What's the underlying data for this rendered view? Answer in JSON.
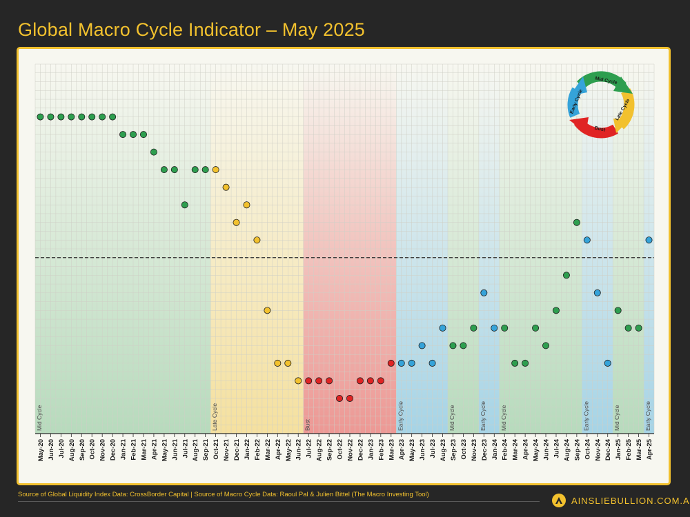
{
  "title": "Global Macro Cycle Indicator – May 2025",
  "footer": {
    "source": "Source of Global Liquidity Index Data: CrossBorder Capital | Source of Macro Cycle Data: Raoul Pal & Julien Bittel (The Macro Investing Tool)",
    "brand": "AINSLIEBULLION.COM.AU"
  },
  "colors": {
    "early": "#35a3d9",
    "mid": "#2e9e4f",
    "late": "#f2c12e",
    "bust": "#e02424",
    "brand": "#f2c12e"
  },
  "cycle_wheel": {
    "labels": [
      "Mid Cycle",
      "Late Cycle",
      "Bust",
      "Early Cycle"
    ]
  },
  "chart_data": {
    "type": "scatter",
    "x": [
      "May-20",
      "Jun-20",
      "Jul-20",
      "Aug-20",
      "Sep-20",
      "Oct-20",
      "Nov-20",
      "Dec-20",
      "Jan-21",
      "Feb-21",
      "Mar-21",
      "Apr-21",
      "May-21",
      "Jun-21",
      "Jul-21",
      "Aug-21",
      "Sep-21",
      "Oct-21",
      "Nov-21",
      "Dec-21",
      "Jan-22",
      "Feb-22",
      "Mar-22",
      "Apr-22",
      "May-22",
      "Jun-22",
      "Jul-22",
      "Aug-22",
      "Sep-22",
      "Oct-22",
      "Nov-22",
      "Dec-22",
      "Jan-23",
      "Feb-23",
      "Mar-23",
      "Apr-23",
      "May-23",
      "Jun-23",
      "Jul-23",
      "Aug-23",
      "Sep-23",
      "Oct-23",
      "Nov-23",
      "Dec-23",
      "Jan-24",
      "Feb-24",
      "Mar-24",
      "Apr-24",
      "May-24",
      "Jun-24",
      "Jul-24",
      "Aug-24",
      "Sep-24",
      "Oct-24",
      "Nov-24",
      "Dec-24",
      "Jan-25",
      "Feb-25",
      "Mar-25",
      "Apr-25"
    ],
    "y": [
      17,
      17,
      17,
      17,
      17,
      17,
      17,
      17,
      16,
      16,
      16,
      15,
      14,
      14,
      12,
      14,
      14,
      14,
      13,
      11,
      12,
      10,
      6,
      3,
      3,
      2,
      2,
      2,
      2,
      1,
      1,
      2,
      2,
      2,
      3,
      3,
      3,
      4,
      3,
      5,
      4,
      4,
      5,
      7,
      5,
      5,
      3,
      3,
      5,
      4,
      6,
      8,
      11,
      10,
      7,
      3,
      6,
      5,
      5,
      10
    ],
    "phase": [
      "mid",
      "mid",
      "mid",
      "mid",
      "mid",
      "mid",
      "mid",
      "mid",
      "mid",
      "mid",
      "mid",
      "mid",
      "mid",
      "mid",
      "mid",
      "mid",
      "mid",
      "late",
      "late",
      "late",
      "late",
      "late",
      "late",
      "late",
      "late",
      "late",
      "bust",
      "bust",
      "bust",
      "bust",
      "bust",
      "bust",
      "bust",
      "bust",
      "bust",
      "early",
      "early",
      "early",
      "early",
      "early",
      "mid",
      "mid",
      "mid",
      "early",
      "early",
      "mid",
      "mid",
      "mid",
      "mid",
      "mid",
      "mid",
      "mid",
      "mid",
      "early",
      "early",
      "early",
      "mid",
      "mid",
      "mid",
      "early"
    ],
    "ylim": [
      -1,
      20
    ],
    "threshold": 9,
    "regions": [
      {
        "label": "Mid Cycle",
        "start": "May-20",
        "end": "Sep-21",
        "phase": "mid"
      },
      {
        "label": "Late Cycle",
        "start": "Oct-21",
        "end": "Jun-22",
        "phase": "late"
      },
      {
        "label": "Bust",
        "start": "Jul-22",
        "end": "Mar-23",
        "phase": "bust"
      },
      {
        "label": "Early Cycle",
        "start": "Apr-23",
        "end": "Aug-23",
        "phase": "early"
      },
      {
        "label": "Mid Cycle",
        "start": "Sep-23",
        "end": "Nov-23",
        "phase": "mid"
      },
      {
        "label": "Early Cycle",
        "start": "Dec-23",
        "end": "Jan-24",
        "phase": "early"
      },
      {
        "label": "Mid Cycle",
        "start": "Feb-24",
        "end": "Sep-24",
        "phase": "mid"
      },
      {
        "label": "Early Cycle",
        "start": "Oct-24",
        "end": "Dec-24",
        "phase": "early"
      },
      {
        "label": "Mid Cycle",
        "start": "Jan-25",
        "end": "Mar-25",
        "phase": "mid"
      },
      {
        "label": "Early Cycle",
        "start": "Apr-25",
        "end": "Apr-25",
        "phase": "early"
      }
    ],
    "grid": true,
    "legend": "top-right"
  }
}
